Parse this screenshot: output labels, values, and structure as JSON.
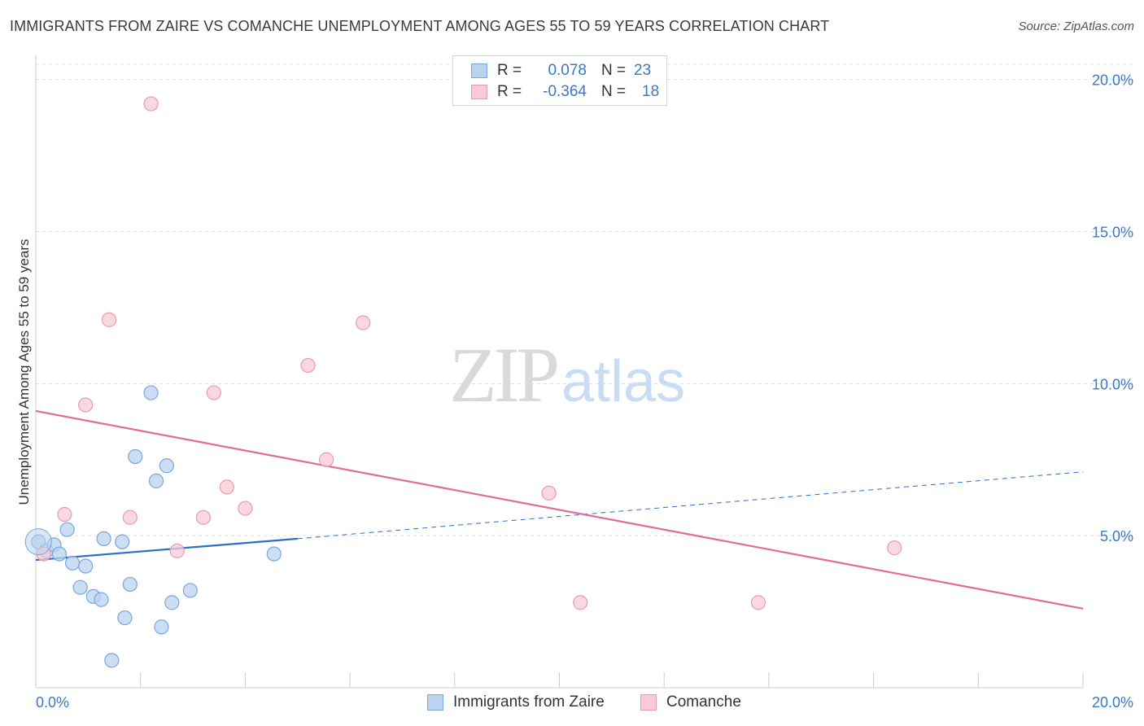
{
  "title": "IMMIGRANTS FROM ZAIRE VS COMANCHE UNEMPLOYMENT AMONG AGES 55 TO 59 YEARS CORRELATION CHART",
  "source": "Source: ZipAtlas.com",
  "watermark": {
    "zip": "ZIP",
    "atlas": "atlas"
  },
  "legend": {
    "rows": [
      {
        "r_label": "R =",
        "r_value": "0.078",
        "n_label": "N =",
        "n_value": "23"
      },
      {
        "r_label": "R =",
        "r_value": "-0.364",
        "n_label": "N =",
        "n_value": "18"
      }
    ]
  },
  "colors": {
    "zaire_fill": "#b9d3f0",
    "zaire_stroke": "#7aa6dc",
    "zaire_line": "#2a6fc9",
    "comanche_fill": "#f9c9d6",
    "comanche_stroke": "#e99ab1",
    "comanche_line": "#e06b96",
    "tick_text": "#3b78c4",
    "grid": "#dddddd"
  },
  "chart_data": {
    "type": "scatter",
    "title": "IMMIGRANTS FROM ZAIRE VS COMANCHE UNEMPLOYMENT AMONG AGES 55 TO 59 YEARS CORRELATION CHART",
    "xlabel": "",
    "ylabel": "Unemployment Among Ages 55 to 59 years",
    "xlim": [
      0,
      20
    ],
    "ylim": [
      0,
      20.5
    ],
    "x_tick_labels": [
      "0.0%",
      "20.0%"
    ],
    "y_ticks": [
      5,
      10,
      15,
      20
    ],
    "y_tick_labels": [
      "5.0%",
      "10.0%",
      "15.0%",
      "20.0%"
    ],
    "grid": true,
    "legend_position": "bottom-center",
    "series": [
      {
        "name": "Immigrants from Zaire",
        "color_key": "zaire",
        "points": [
          [
            0.05,
            4.8
          ],
          [
            0.2,
            4.5
          ],
          [
            0.35,
            4.7
          ],
          [
            0.45,
            4.4
          ],
          [
            0.6,
            5.2
          ],
          [
            0.7,
            4.1
          ],
          [
            0.95,
            4.0
          ],
          [
            0.85,
            3.3
          ],
          [
            1.1,
            3.0
          ],
          [
            1.25,
            2.9
          ],
          [
            1.3,
            4.9
          ],
          [
            1.45,
            0.9
          ],
          [
            1.65,
            4.8
          ],
          [
            1.7,
            2.3
          ],
          [
            1.8,
            3.4
          ],
          [
            1.9,
            7.6
          ],
          [
            2.2,
            9.7
          ],
          [
            2.3,
            6.8
          ],
          [
            2.4,
            2.0
          ],
          [
            2.5,
            7.3
          ],
          [
            2.6,
            2.8
          ],
          [
            2.95,
            3.2
          ],
          [
            4.55,
            4.4
          ]
        ],
        "trend": {
          "x1": 0.0,
          "y1": 4.2,
          "x2": 5.0,
          "y2": 4.9,
          "dash_x2": 20.0,
          "dash_y2": 7.1
        }
      },
      {
        "name": "Comanche",
        "color_key": "comanche",
        "points": [
          [
            0.15,
            4.4
          ],
          [
            0.55,
            5.7
          ],
          [
            0.95,
            9.3
          ],
          [
            1.4,
            12.1
          ],
          [
            1.8,
            5.6
          ],
          [
            2.2,
            19.2
          ],
          [
            2.7,
            4.5
          ],
          [
            3.2,
            5.6
          ],
          [
            3.4,
            9.7
          ],
          [
            3.65,
            6.6
          ],
          [
            4.0,
            5.9
          ],
          [
            5.2,
            10.6
          ],
          [
            5.55,
            7.5
          ],
          [
            6.25,
            12.0
          ],
          [
            9.8,
            6.4
          ],
          [
            10.4,
            2.8
          ],
          [
            13.8,
            2.8
          ],
          [
            16.4,
            4.6
          ]
        ],
        "trend": {
          "x1": 0.0,
          "y1": 9.1,
          "x2": 20.0,
          "y2": 2.6
        }
      }
    ]
  }
}
